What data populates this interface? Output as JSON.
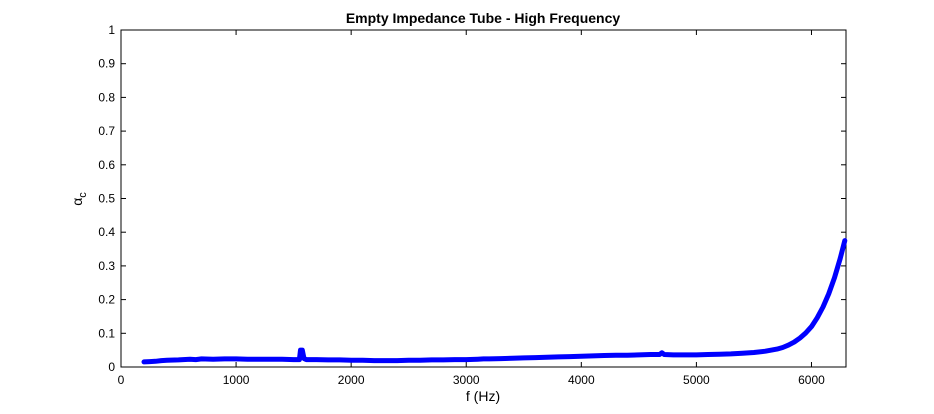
{
  "chart_data": {
    "type": "line",
    "title": "Empty Impedance Tube - High Frequency",
    "xlabel": "f (Hz)",
    "ylabel_main": "α",
    "ylabel_sub": "c",
    "xlim": [
      0,
      6300
    ],
    "ylim": [
      0,
      1
    ],
    "xticks": [
      0,
      1000,
      2000,
      3000,
      4000,
      5000,
      6000
    ],
    "yticks": [
      0,
      0.1,
      0.2,
      0.3,
      0.4,
      0.5,
      0.6,
      0.7,
      0.8,
      0.9,
      1
    ],
    "ytick_labels": [
      "0",
      "0.1",
      "0.2",
      "0.3",
      "0.4",
      "0.5",
      "0.6",
      "0.7",
      "0.8",
      "0.9",
      "1"
    ],
    "grid": false,
    "series": [
      {
        "color": "#0000ff",
        "x": [
          200,
          250,
          300,
          350,
          400,
          500,
          600,
          650,
          700,
          800,
          900,
          1000,
          1100,
          1200,
          1300,
          1400,
          1500,
          1550,
          1560,
          1575,
          1590,
          1610,
          1700,
          1800,
          1900,
          2000,
          2100,
          2200,
          2300,
          2400,
          2500,
          2600,
          2700,
          2800,
          2900,
          3000,
          3100,
          3150,
          3200,
          3300,
          3400,
          3500,
          3600,
          3700,
          3800,
          3900,
          4000,
          4100,
          4200,
          4300,
          4400,
          4500,
          4600,
          4680,
          4700,
          4720,
          4800,
          4900,
          5000,
          5100,
          5200,
          5300,
          5400,
          5500,
          5600,
          5700,
          5750,
          5800,
          5850,
          5900,
          5950,
          6000,
          6050,
          6100,
          6150,
          6200,
          6250,
          6290
        ],
        "y": [
          0.015,
          0.016,
          0.017,
          0.019,
          0.02,
          0.021,
          0.023,
          0.022,
          0.024,
          0.023,
          0.024,
          0.024,
          0.023,
          0.023,
          0.023,
          0.023,
          0.022,
          0.022,
          0.05,
          0.05,
          0.025,
          0.022,
          0.022,
          0.021,
          0.021,
          0.02,
          0.02,
          0.019,
          0.019,
          0.019,
          0.02,
          0.02,
          0.021,
          0.021,
          0.022,
          0.022,
          0.023,
          0.024,
          0.024,
          0.025,
          0.026,
          0.027,
          0.028,
          0.029,
          0.03,
          0.031,
          0.032,
          0.033,
          0.034,
          0.035,
          0.035,
          0.036,
          0.037,
          0.037,
          0.042,
          0.037,
          0.036,
          0.036,
          0.036,
          0.037,
          0.038,
          0.039,
          0.041,
          0.043,
          0.047,
          0.053,
          0.058,
          0.065,
          0.074,
          0.086,
          0.101,
          0.12,
          0.146,
          0.178,
          0.217,
          0.265,
          0.322,
          0.375
        ]
      }
    ]
  }
}
